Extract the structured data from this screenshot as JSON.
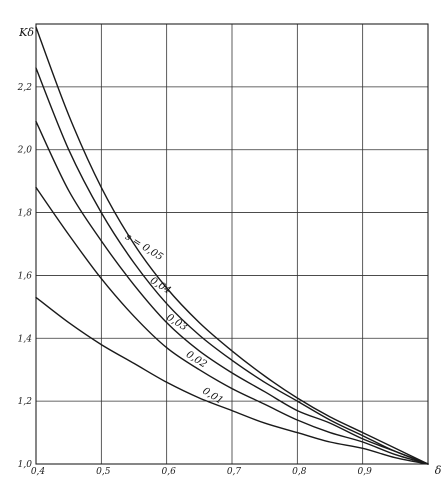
{
  "chart_data": {
    "type": "line",
    "title": "",
    "xlabel": "δ",
    "ylabel": "Kδ",
    "xlim": [
      0.4,
      1.0
    ],
    "ylim": [
      1.0,
      2.4
    ],
    "grid": true,
    "legend": "none",
    "x_ticks": [
      {
        "value": 0.4,
        "label": "0,4"
      },
      {
        "value": 0.5,
        "label": "0,5"
      },
      {
        "value": 0.6,
        "label": "0,6"
      },
      {
        "value": 0.7,
        "label": "0,7"
      },
      {
        "value": 0.8,
        "label": "0,8"
      },
      {
        "value": 0.9,
        "label": "0,9"
      }
    ],
    "y_ticks": [
      {
        "value": 1.0,
        "label": "1,0"
      },
      {
        "value": 1.2,
        "label": "1,2"
      },
      {
        "value": 1.4,
        "label": "1,4"
      },
      {
        "value": 1.6,
        "label": "1,6"
      },
      {
        "value": 1.8,
        "label": "1,8"
      },
      {
        "value": 2.0,
        "label": "2,0"
      },
      {
        "value": 2.2,
        "label": "2,2"
      }
    ],
    "x": [
      0.4,
      0.45,
      0.5,
      0.55,
      0.6,
      0.65,
      0.7,
      0.75,
      0.8,
      0.85,
      0.9,
      0.95,
      1.0
    ],
    "series": [
      {
        "name": "s = 0,05",
        "values": [
          2.39,
          2.11,
          1.88,
          1.7,
          1.56,
          1.45,
          1.36,
          1.28,
          1.21,
          1.15,
          1.1,
          1.05,
          1.0
        ]
      },
      {
        "name": "0,04",
        "values": [
          2.26,
          2.0,
          1.8,
          1.64,
          1.51,
          1.41,
          1.33,
          1.26,
          1.2,
          1.14,
          1.09,
          1.04,
          1.0
        ]
      },
      {
        "name": "0,03",
        "values": [
          2.09,
          1.87,
          1.71,
          1.57,
          1.45,
          1.36,
          1.29,
          1.23,
          1.17,
          1.13,
          1.08,
          1.04,
          1.0
        ]
      },
      {
        "name": "0,02",
        "values": [
          1.88,
          1.73,
          1.59,
          1.47,
          1.37,
          1.3,
          1.24,
          1.19,
          1.14,
          1.1,
          1.07,
          1.03,
          1.0
        ]
      },
      {
        "name": "0,01",
        "values": [
          1.53,
          1.45,
          1.38,
          1.32,
          1.26,
          1.21,
          1.17,
          1.13,
          1.1,
          1.07,
          1.05,
          1.02,
          1.0
        ]
      }
    ]
  }
}
